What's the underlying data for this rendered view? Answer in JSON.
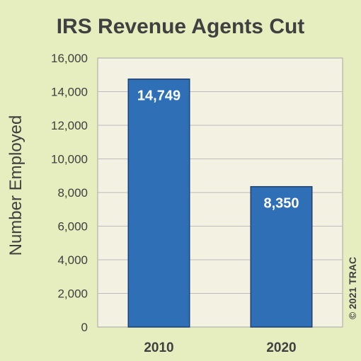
{
  "chart_data": {
    "type": "bar",
    "title": "IRS Revenue Agents Cut",
    "ylabel": "Number Employed",
    "xlabel": "",
    "categories": [
      "2010",
      "2020"
    ],
    "values": [
      14749,
      8350
    ],
    "data_labels": [
      "14,749",
      "8,350"
    ],
    "ylim": [
      0,
      16000
    ],
    "yticks": [
      0,
      2000,
      4000,
      6000,
      8000,
      10000,
      12000,
      14000,
      16000
    ],
    "ytick_labels": [
      "0",
      "2,000",
      "4,000",
      "6,000",
      "8,000",
      "10,000",
      "12,000",
      "14,000",
      "16,000"
    ],
    "grid": "horizontal",
    "legend": "none",
    "credit": "© 2021 TRAC"
  },
  "colors": {
    "background": "#e6edbf",
    "plot_area": "#f3f1e1",
    "bar": "#2f6fb6",
    "bar_edge": "#1f3f73",
    "text": "#404040",
    "grid": "#bdbdbd"
  }
}
